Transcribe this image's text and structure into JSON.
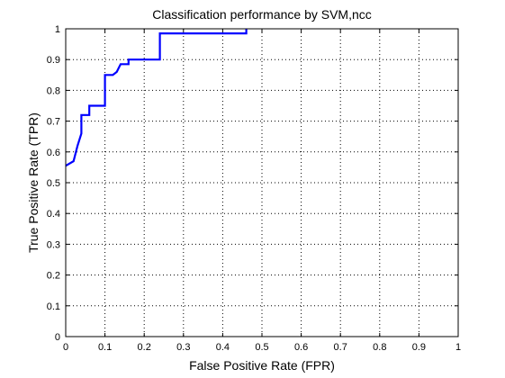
{
  "chart_data": {
    "type": "line",
    "title": "Classification performance by SVM,ncc",
    "xlabel": "False Positive Rate (FPR)",
    "ylabel": "True Positive Rate (TPR)",
    "xlim": [
      0,
      1
    ],
    "ylim": [
      0,
      1
    ],
    "xticks": [
      "0",
      "0.1",
      "0.2",
      "0.3",
      "0.4",
      "0.5",
      "0.6",
      "0.7",
      "0.8",
      "0.9",
      "1"
    ],
    "yticks": [
      "0",
      "0.1",
      "0.2",
      "0.3",
      "0.4",
      "0.5",
      "0.6",
      "0.7",
      "0.8",
      "0.9",
      "1"
    ],
    "grid": true,
    "grid_style": "dotted",
    "line_color": "#0000ff",
    "series": [
      {
        "x": [
          0.0,
          0.02,
          0.03,
          0.04,
          0.04,
          0.06,
          0.06,
          0.1,
          0.1,
          0.12,
          0.13,
          0.14,
          0.16,
          0.16,
          0.24,
          0.24,
          0.46,
          0.46
        ],
        "y": [
          0.555,
          0.57,
          0.62,
          0.66,
          0.72,
          0.72,
          0.75,
          0.75,
          0.85,
          0.85,
          0.86,
          0.885,
          0.885,
          0.9,
          0.9,
          0.985,
          0.985,
          1.0
        ]
      }
    ]
  }
}
